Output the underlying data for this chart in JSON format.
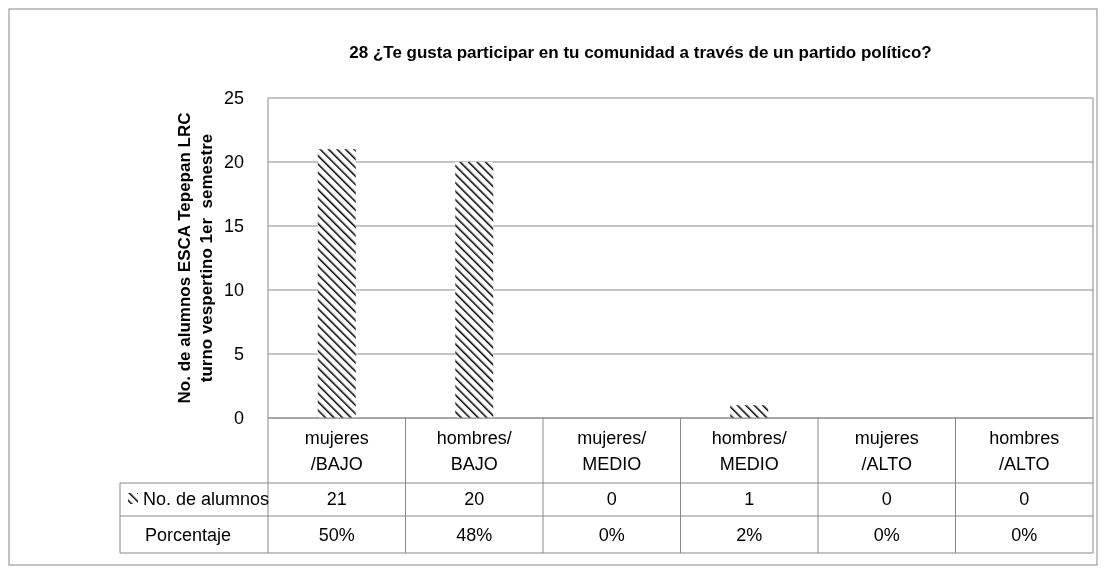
{
  "chart_data": {
    "type": "bar",
    "title": "28 ¿Te gusta participar en tu comunidad a través de un partido político?",
    "ylabel": "No. de alumnos ESCA Tepepan LRC\nturno vespertino 1er  semestre",
    "categories": [
      "mujeres /BAJO",
      "hombres/ BAJO",
      "mujeres/ MEDIO",
      "hombres/ MEDIO",
      "mujeres /ALTO",
      "hombres /ALTO"
    ],
    "series": [
      {
        "name": "No. de alumnos",
        "color": "#000000",
        "values": [
          21,
          20,
          0,
          1,
          0,
          0
        ]
      }
    ],
    "data_labels": true,
    "annotations": [
      "Porcentaje",
      "50%",
      "48%",
      "0%",
      "2%",
      "0%",
      "0%"
    ],
    "ylim": [
      0,
      25
    ],
    "yticks": [
      0,
      5,
      10,
      15,
      20,
      25
    ],
    "grid": "y",
    "legend": "bottom left"
  }
}
